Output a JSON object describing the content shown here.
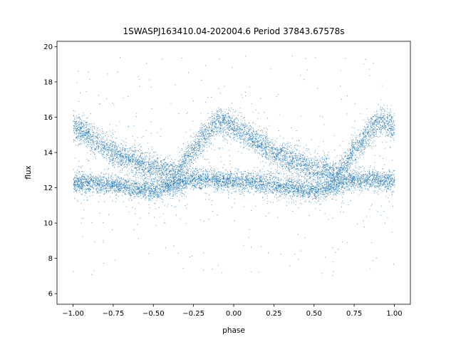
{
  "chart_data": {
    "type": "scatter",
    "title": "1SWASPJ163410.04-202004.6 Period 37843.67578s",
    "xlabel": "phase",
    "ylabel": "flux",
    "xlim": [
      -1.1,
      1.1
    ],
    "ylim": [
      5.4,
      20.3
    ],
    "x_ticks": [
      -1.0,
      -0.75,
      -0.5,
      -0.25,
      0.0,
      0.25,
      0.5,
      0.75,
      1.0
    ],
    "x_tick_labels": [
      "−1.00",
      "−0.75",
      "−0.50",
      "−0.25",
      "0.00",
      "0.25",
      "0.50",
      "0.75",
      "1.00"
    ],
    "y_ticks": [
      6,
      8,
      10,
      12,
      14,
      16,
      18,
      20
    ],
    "y_tick_labels": [
      "6",
      "8",
      "10",
      "12",
      "14",
      "16",
      "18",
      "20"
    ],
    "grid": false,
    "legend": "none",
    "marker_color": "#1f77b4",
    "series": [
      {
        "phase_range": [
          -1.0,
          1.0
        ],
        "baseline_branch": [
          {
            "x": -1.0,
            "y": 12.3
          },
          {
            "x": -0.75,
            "y": 12.2
          },
          {
            "x": -0.5,
            "y": 11.8
          },
          {
            "x": -0.25,
            "y": 12.5
          },
          {
            "x": 0.0,
            "y": 12.4
          },
          {
            "x": 0.25,
            "y": 12.2
          },
          {
            "x": 0.5,
            "y": 11.8
          },
          {
            "x": 0.75,
            "y": 12.5
          },
          {
            "x": 1.0,
            "y": 12.4
          }
        ],
        "peak_branch": [
          {
            "x": -1.0,
            "y": 15.5
          },
          {
            "x": -0.75,
            "y": 14.0
          },
          {
            "x": -0.5,
            "y": 13.1
          },
          {
            "x": -0.35,
            "y": 12.8
          },
          {
            "x": -0.25,
            "y": 14.2
          },
          {
            "x": -0.1,
            "y": 15.8
          },
          {
            "x": 0.0,
            "y": 15.5
          },
          {
            "x": 0.25,
            "y": 14.0
          },
          {
            "x": 0.5,
            "y": 13.1
          },
          {
            "x": 0.65,
            "y": 12.8
          },
          {
            "x": 0.75,
            "y": 14.2
          },
          {
            "x": 0.9,
            "y": 15.8
          },
          {
            "x": 1.0,
            "y": 15.5
          }
        ],
        "outlier_range": [
          7.0,
          19.5
        ]
      }
    ]
  }
}
